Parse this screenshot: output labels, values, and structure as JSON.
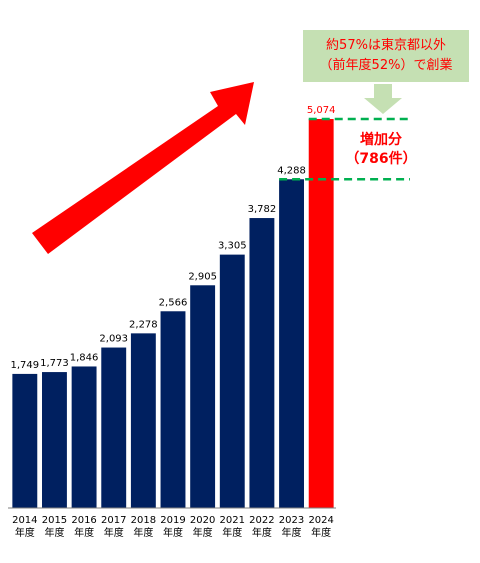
{
  "chart_data": {
    "type": "bar",
    "categories": [
      "2014\n年度",
      "2015\n年度",
      "2016\n年度",
      "2017\n年度",
      "2018\n年度",
      "2019\n年度",
      "2020\n年度",
      "2021\n年度",
      "2022\n年度",
      "2023\n年度",
      "2024\n年度"
    ],
    "values": [
      1749,
      1773,
      1846,
      2093,
      2278,
      2566,
      2905,
      3305,
      3782,
      4288,
      5074
    ],
    "value_labels": [
      "1,749",
      "1,773",
      "1,846",
      "2,093",
      "2,278",
      "2,566",
      "2,905",
      "3,305",
      "3,782",
      "4,288",
      "5,074"
    ],
    "colors": [
      "#002060",
      "#002060",
      "#002060",
      "#002060",
      "#002060",
      "#002060",
      "#002060",
      "#002060",
      "#002060",
      "#002060",
      "#ff0000"
    ],
    "label_colors": [
      "#000000",
      "#000000",
      "#000000",
      "#000000",
      "#000000",
      "#000000",
      "#000000",
      "#000000",
      "#000000",
      "#000000",
      "#ff0000"
    ],
    "ylim": [
      0,
      6000
    ],
    "annotations": [
      "約57%は東京都以外\n（前年度52%）で創業",
      "増加分\n（786件）"
    ]
  }
}
